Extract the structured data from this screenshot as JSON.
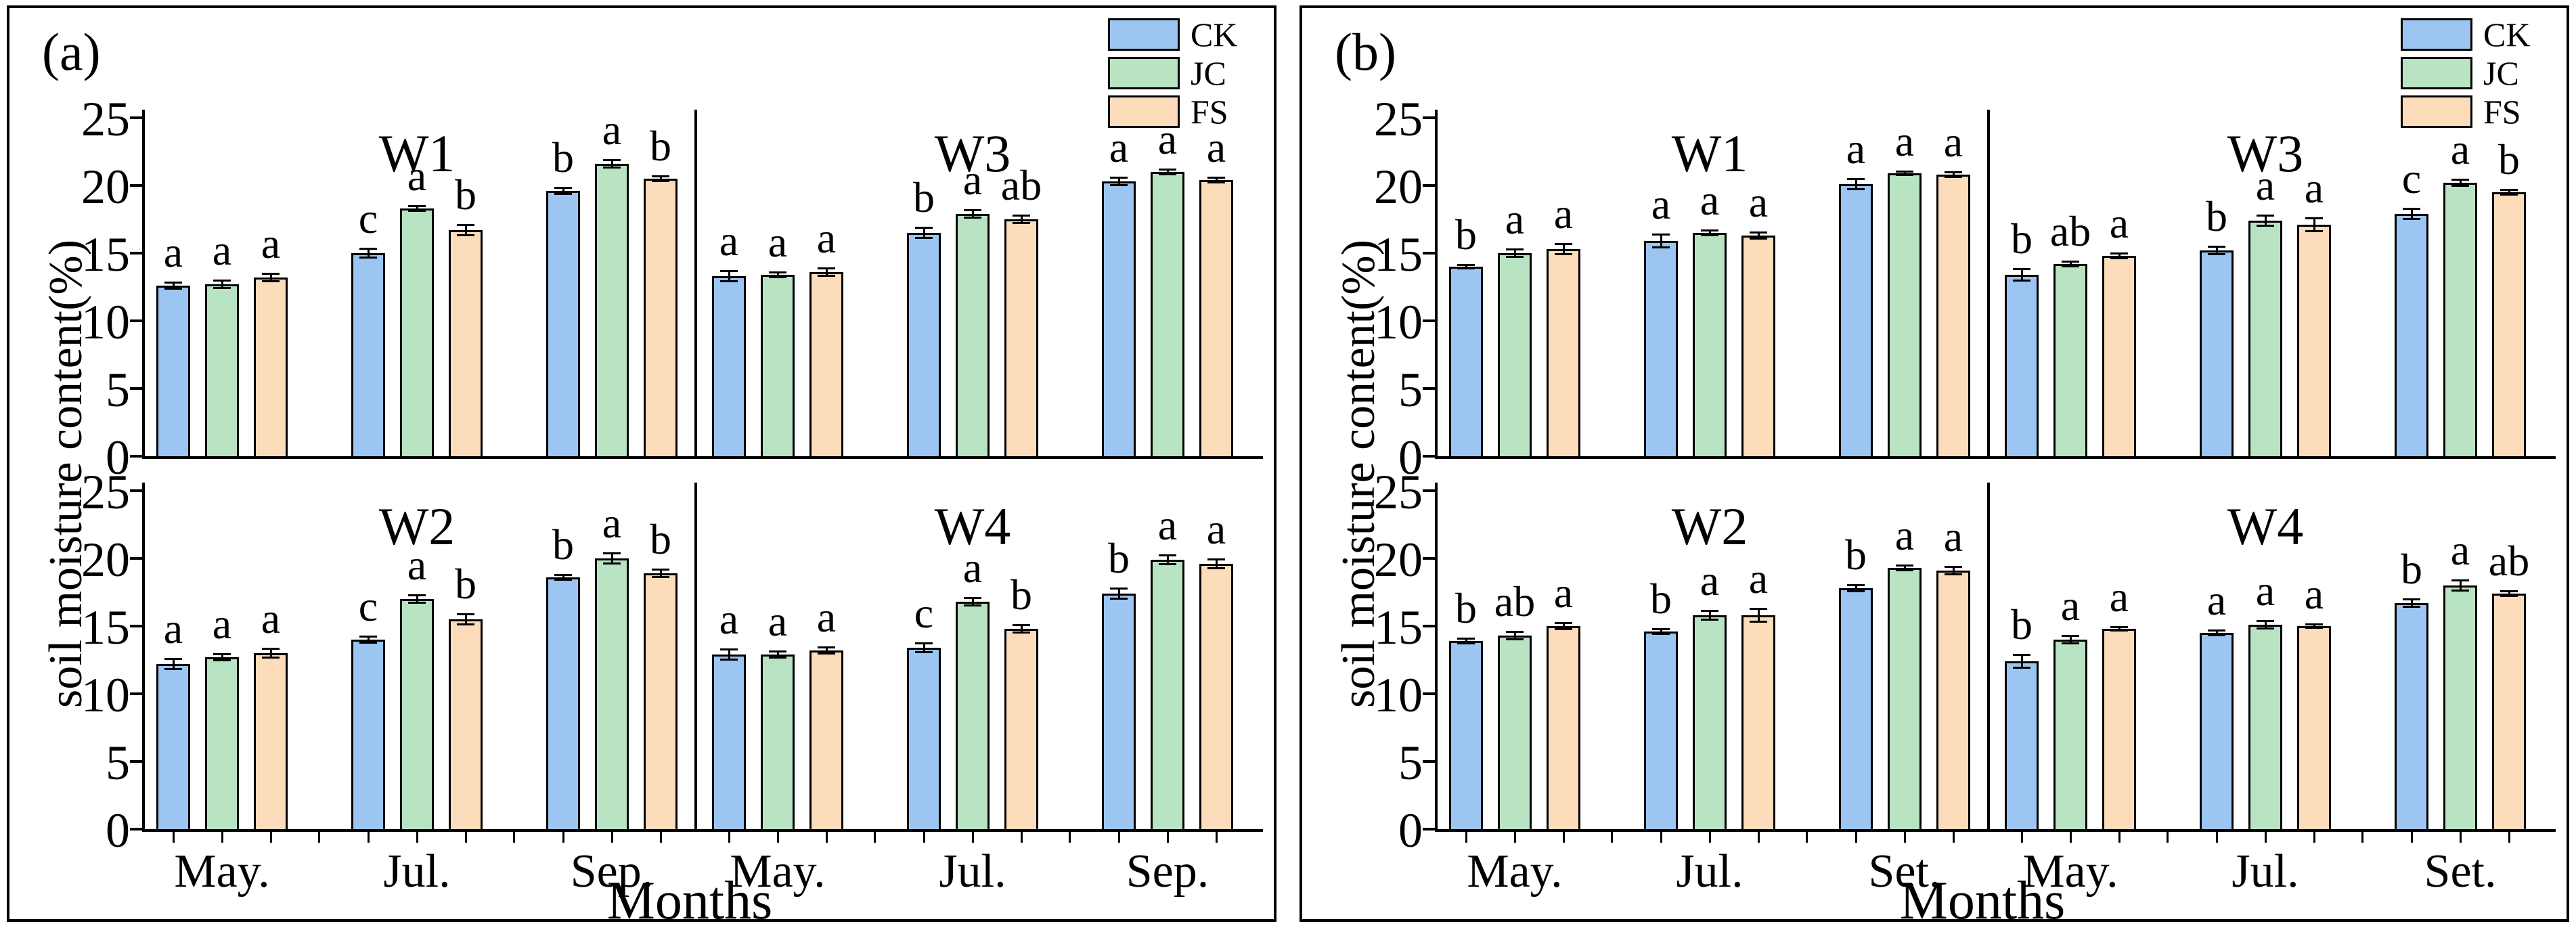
{
  "figure": {
    "background": "#ffffff",
    "axis_color": "#000000"
  },
  "chart_data": [
    {
      "type": "bar",
      "panel_label": "(a)",
      "ylabel": "soil moisture content(%)",
      "xlabel": "Months",
      "ylim": [
        0,
        25
      ],
      "yticks": [
        0,
        5,
        10,
        15,
        20,
        25
      ],
      "categories": [
        "May.",
        "Jul.",
        "Sep."
      ],
      "grid": false,
      "error_bars": true,
      "legend_position": "top-right",
      "legend": [
        {
          "label": "CK",
          "color": "#9cc5f1"
        },
        {
          "label": "JC",
          "color": "#b8e4c3"
        },
        {
          "label": "FS",
          "color": "#fddcbb"
        }
      ],
      "subplots": [
        {
          "title": "W1",
          "row": 0,
          "col": 0,
          "series": [
            {
              "name": "CK",
              "values": [
                12.6,
                15.0,
                19.6
              ],
              "errors": [
                0.25,
                0.35,
                0.25
              ],
              "letters": [
                "a",
                "c",
                "b"
              ]
            },
            {
              "name": "JC",
              "values": [
                12.7,
                18.3,
                21.6
              ],
              "errors": [
                0.3,
                0.2,
                0.3
              ],
              "letters": [
                "a",
                "a",
                "a"
              ]
            },
            {
              "name": "FS",
              "values": [
                13.2,
                16.7,
                20.5
              ],
              "errors": [
                0.3,
                0.4,
                0.2
              ],
              "letters": [
                "a",
                "b",
                "b"
              ]
            }
          ]
        },
        {
          "title": "W3",
          "row": 0,
          "col": 1,
          "series": [
            {
              "name": "CK",
              "values": [
                13.3,
                16.5,
                20.3
              ],
              "errors": [
                0.4,
                0.4,
                0.3
              ],
              "letters": [
                "a",
                "b",
                "a"
              ]
            },
            {
              "name": "JC",
              "values": [
                13.4,
                17.9,
                21.0
              ],
              "errors": [
                0.2,
                0.3,
                0.2
              ],
              "letters": [
                "a",
                "a",
                "a"
              ]
            },
            {
              "name": "FS",
              "values": [
                13.6,
                17.5,
                20.4
              ],
              "errors": [
                0.3,
                0.3,
                0.2
              ],
              "letters": [
                "a",
                "ab",
                "a"
              ]
            }
          ]
        },
        {
          "title": "W2",
          "row": 1,
          "col": 0,
          "series": [
            {
              "name": "CK",
              "values": [
                12.2,
                14.0,
                18.6
              ],
              "errors": [
                0.4,
                0.25,
                0.2
              ],
              "letters": [
                "a",
                "c",
                "b"
              ]
            },
            {
              "name": "JC",
              "values": [
                12.7,
                17.0,
                20.0
              ],
              "errors": [
                0.25,
                0.3,
                0.4
              ],
              "letters": [
                "a",
                "a",
                "a"
              ]
            },
            {
              "name": "FS",
              "values": [
                13.0,
                15.5,
                18.9
              ],
              "errors": [
                0.35,
                0.4,
                0.3
              ],
              "letters": [
                "a",
                "b",
                "b"
              ]
            }
          ]
        },
        {
          "title": "W4",
          "row": 1,
          "col": 1,
          "series": [
            {
              "name": "CK",
              "values": [
                12.9,
                13.4,
                17.4
              ],
              "errors": [
                0.4,
                0.35,
                0.4
              ],
              "letters": [
                "a",
                "c",
                "b"
              ]
            },
            {
              "name": "JC",
              "values": [
                12.9,
                16.8,
                19.9
              ],
              "errors": [
                0.25,
                0.3,
                0.35
              ],
              "letters": [
                "a",
                "a",
                "a"
              ]
            },
            {
              "name": "FS",
              "values": [
                13.2,
                14.8,
                19.6
              ],
              "errors": [
                0.25,
                0.3,
                0.35
              ],
              "letters": [
                "a",
                "b",
                "a"
              ]
            }
          ]
        }
      ]
    },
    {
      "type": "bar",
      "panel_label": "(b)",
      "ylabel": "soil moisture content(%)",
      "xlabel": "Months",
      "ylim": [
        0,
        25
      ],
      "yticks": [
        0,
        5,
        10,
        15,
        20,
        25
      ],
      "categories": [
        "May.",
        "Jul.",
        "Set."
      ],
      "grid": false,
      "error_bars": true,
      "legend_position": "top-right",
      "legend": [
        {
          "label": "CK",
          "color": "#9cc5f1"
        },
        {
          "label": "JC",
          "color": "#b8e4c3"
        },
        {
          "label": "FS",
          "color": "#fddcbb"
        }
      ],
      "subplots": [
        {
          "title": "W1",
          "row": 0,
          "col": 0,
          "series": [
            {
              "name": "CK",
              "values": [
                14.0,
                15.9,
                20.1
              ],
              "errors": [
                0.15,
                0.5,
                0.4
              ],
              "letters": [
                "b",
                "a",
                "a"
              ]
            },
            {
              "name": "JC",
              "values": [
                15.0,
                16.5,
                20.9
              ],
              "errors": [
                0.3,
                0.2,
                0.15
              ],
              "letters": [
                "a",
                "a",
                "a"
              ]
            },
            {
              "name": "FS",
              "values": [
                15.3,
                16.3,
                20.8
              ],
              "errors": [
                0.4,
                0.25,
                0.2
              ],
              "letters": [
                "a",
                "a",
                "a"
              ]
            }
          ]
        },
        {
          "title": "W3",
          "row": 0,
          "col": 1,
          "series": [
            {
              "name": "CK",
              "values": [
                13.4,
                15.2,
                17.9
              ],
              "errors": [
                0.45,
                0.3,
                0.4
              ],
              "letters": [
                "b",
                "b",
                "c"
              ]
            },
            {
              "name": "JC",
              "values": [
                14.2,
                17.4,
                20.2
              ],
              "errors": [
                0.2,
                0.4,
                0.25
              ],
              "letters": [
                "ab",
                "a",
                "a"
              ]
            },
            {
              "name": "FS",
              "values": [
                14.8,
                17.1,
                19.5
              ],
              "errors": [
                0.2,
                0.5,
                0.2
              ],
              "letters": [
                "a",
                "a",
                "b"
              ]
            }
          ]
        },
        {
          "title": "W2",
          "row": 1,
          "col": 0,
          "series": [
            {
              "name": "CK",
              "values": [
                13.9,
                14.6,
                17.8
              ],
              "errors": [
                0.2,
                0.2,
                0.25
              ],
              "letters": [
                "b",
                "b",
                "b"
              ]
            },
            {
              "name": "JC",
              "values": [
                14.3,
                15.8,
                19.3
              ],
              "errors": [
                0.3,
                0.35,
                0.2
              ],
              "letters": [
                "ab",
                "a",
                "a"
              ]
            },
            {
              "name": "FS",
              "values": [
                15.0,
                15.8,
                19.1
              ],
              "errors": [
                0.25,
                0.5,
                0.3
              ],
              "letters": [
                "a",
                "a",
                "a"
              ]
            }
          ]
        },
        {
          "title": "W4",
          "row": 1,
          "col": 1,
          "series": [
            {
              "name": "CK",
              "values": [
                12.4,
                14.5,
                16.7
              ],
              "errors": [
                0.5,
                0.2,
                0.3
              ],
              "letters": [
                "b",
                "a",
                "b"
              ]
            },
            {
              "name": "JC",
              "values": [
                14.0,
                15.1,
                18.0
              ],
              "errors": [
                0.3,
                0.3,
                0.4
              ],
              "letters": [
                "a",
                "a",
                "a"
              ]
            },
            {
              "name": "FS",
              "values": [
                14.8,
                15.0,
                17.4
              ],
              "errors": [
                0.15,
                0.15,
                0.2
              ],
              "letters": [
                "a",
                "a",
                "ab"
              ]
            }
          ]
        }
      ]
    }
  ]
}
